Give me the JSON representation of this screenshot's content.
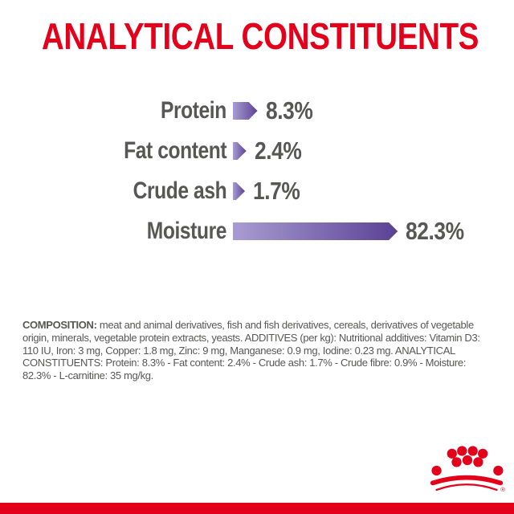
{
  "title": "ANALYTICAL CONSTITUENTS",
  "chart_data": {
    "type": "bar",
    "orientation": "horizontal",
    "title": "ANALYTICAL CONSTITUENTS",
    "categories": [
      "Protein",
      "Fat content",
      "Crude ash",
      "Moisture"
    ],
    "values": [
      8.3,
      2.4,
      1.7,
      82.3
    ],
    "value_labels": [
      "8.3%",
      "2.4%",
      "1.7%",
      "82.3%"
    ],
    "unit": "%",
    "xlim": [
      0,
      90
    ],
    "grid": false,
    "legend": false,
    "bar_style": "right-pointing-arrow",
    "bar_gradient": [
      "#a89dd2",
      "#5b4194"
    ]
  },
  "composition": {
    "label": "COMPOSITION:",
    "text": " meat and animal derivatives, fish and fish derivatives, cereals, derivatives of vegetable origin, minerals, vegetable protein extracts, yeasts. ADDITIVES (per kg): Nutritional additives: Vitamin D3: 110 IU, Iron: 3 mg, Copper: 1.8 mg, Zinc: 9 mg, Manganese: 0.9 mg, Iodine: 0.23 mg. ANALYTICAL CONSTITUENTS: Protein: 8.3% - Fat content: 2.4% - Crude ash: 1.7% - Crude fibre: 0.9% - Moisture: 82.3% - L-carnitine: 35 mg/kg."
  },
  "brand": {
    "logo_icon": "royal-canin-crown",
    "registered_symbol": "®"
  },
  "colors": {
    "brand_red": "#e2001a",
    "text_gray": "#575756",
    "bar_light": "#a89dd2",
    "bar_dark": "#5b4194"
  }
}
